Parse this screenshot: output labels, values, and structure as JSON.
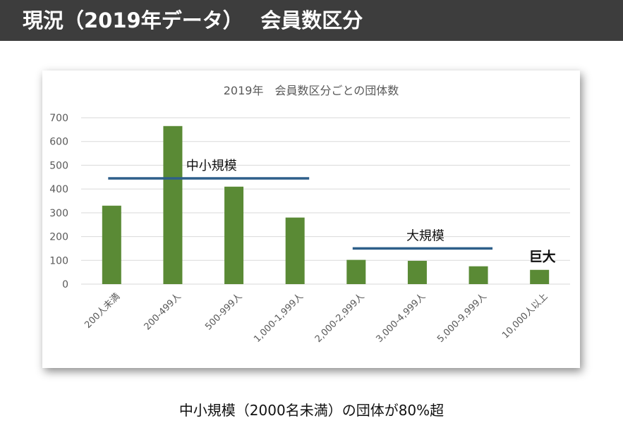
{
  "slide": {
    "title": "現況（2019年データ）　 会員数区分",
    "caption": "中小規模（2000名未満）の団体が80%超"
  },
  "colors": {
    "title_bar": "#3d3d3d",
    "bar": "#5a8a35",
    "annotation_line": "#2e5f8a",
    "chart_title": "#595959",
    "tick_label": "#595959",
    "grid": "#d9d9d9"
  },
  "chart_data": {
    "type": "bar",
    "title": "2019年　会員数区分ごとの団体数",
    "xlabel": "",
    "ylabel": "",
    "ylim": [
      0,
      700
    ],
    "yticks": [
      0,
      100,
      200,
      300,
      400,
      500,
      600,
      700
    ],
    "grid": true,
    "categories": [
      "200人未満",
      "200-499人",
      "500-999人",
      "1,000-1,999人",
      "2,000-2,999人",
      "3,000-4,999人",
      "5,000-9,999人",
      "10,000人以上"
    ],
    "values": [
      330,
      665,
      410,
      280,
      102,
      98,
      75,
      60
    ],
    "annotations": [
      {
        "label": "中小規模",
        "from_category": 0,
        "to_category": 3,
        "y": 445
      },
      {
        "label": "大規模",
        "from_category": 4,
        "to_category": 6,
        "y": 150
      },
      {
        "label": "巨大",
        "from_category": 7,
        "to_category": 7,
        "y": 120
      }
    ]
  }
}
